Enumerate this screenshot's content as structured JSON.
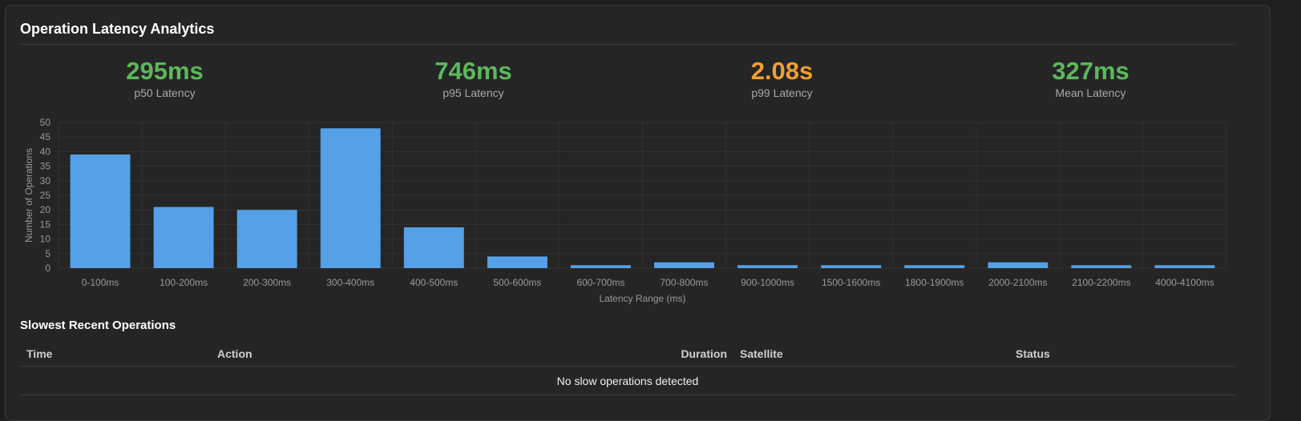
{
  "panel": {
    "title": "Operation Latency Analytics"
  },
  "stats": [
    {
      "value": "295ms",
      "label": "p50 Latency",
      "color": "#5cb85c"
    },
    {
      "value": "746ms",
      "label": "p95 Latency",
      "color": "#5cb85c"
    },
    {
      "value": "2.08s",
      "label": "p99 Latency",
      "color": "#f0a030"
    },
    {
      "value": "327ms",
      "label": "Mean Latency",
      "color": "#5cb85c"
    }
  ],
  "chart_data": {
    "type": "bar",
    "categories": [
      "0-100ms",
      "100-200ms",
      "200-300ms",
      "300-400ms",
      "400-500ms",
      "500-600ms",
      "600-700ms",
      "700-800ms",
      "900-1000ms",
      "1500-1600ms",
      "1800-1900ms",
      "2000-2100ms",
      "2100-2200ms",
      "4000-4100ms"
    ],
    "values": [
      39,
      21,
      20,
      48,
      14,
      4,
      1,
      2,
      1,
      1,
      1,
      2,
      1,
      1
    ],
    "xlabel": "Latency Range (ms)",
    "ylabel": "Number of Operations",
    "ylim": [
      0,
      50
    ],
    "yticks": [
      0,
      5,
      10,
      15,
      20,
      25,
      30,
      35,
      40,
      45,
      50
    ],
    "bar_color": "#55a0e6",
    "grid": true
  },
  "slow_ops": {
    "title": "Slowest Recent Operations",
    "columns": [
      "Time",
      "Action",
      "Duration",
      "Satellite",
      "Status"
    ],
    "empty_message": "No slow operations detected"
  }
}
